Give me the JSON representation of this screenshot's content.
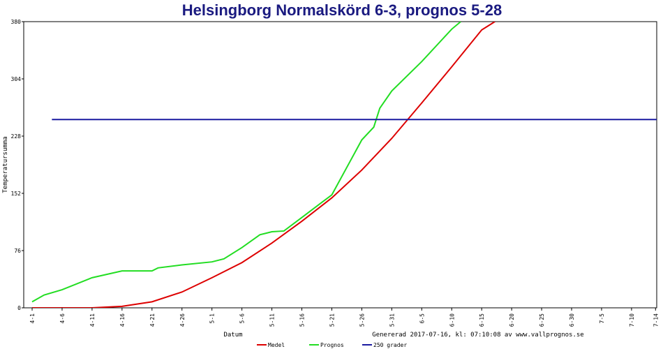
{
  "chart_data": {
    "type": "line",
    "title": "Helsingborg Normalskörd 6-3, prognos 5-28",
    "ylabel": "Temperatursumma",
    "xlabel": "Datum",
    "footer": "Genererad 2017-07-16, kl: 07:10:08 av www.vallprognos.se",
    "xlim": [
      -1.4,
      104.2
    ],
    "ylim": [
      0,
      380
    ],
    "yticks": [
      0,
      76,
      152,
      228,
      304,
      380
    ],
    "xticks": [
      {
        "value": 0,
        "label": "4-1"
      },
      {
        "value": 5,
        "label": "4-6"
      },
      {
        "value": 10,
        "label": "4-11"
      },
      {
        "value": 15,
        "label": "4-16"
      },
      {
        "value": 20,
        "label": "4-21"
      },
      {
        "value": 25,
        "label": "4-26"
      },
      {
        "value": 30,
        "label": "5-1"
      },
      {
        "value": 35,
        "label": "5-6"
      },
      {
        "value": 40,
        "label": "5-11"
      },
      {
        "value": 45,
        "label": "5-16"
      },
      {
        "value": 50,
        "label": "5-21"
      },
      {
        "value": 55,
        "label": "5-26"
      },
      {
        "value": 60,
        "label": "5-31"
      },
      {
        "value": 65,
        "label": "6-5"
      },
      {
        "value": 70,
        "label": "6-10"
      },
      {
        "value": 75,
        "label": "6-15"
      },
      {
        "value": 80,
        "label": "6-20"
      },
      {
        "value": 85,
        "label": "6-25"
      },
      {
        "value": 90,
        "label": "6-30"
      },
      {
        "value": 95,
        "label": "7-5"
      },
      {
        "value": 100,
        "label": "7-10"
      },
      {
        "value": 104,
        "label": "7-14"
      }
    ],
    "series": [
      {
        "name": "Medel",
        "color": "#dd0000",
        "x": [
          0,
          5,
          10,
          15,
          20,
          25,
          30,
          35,
          40,
          45,
          50,
          55,
          60,
          65,
          70,
          75,
          77.2
        ],
        "values": [
          0,
          0,
          0,
          2,
          8,
          21,
          40,
          60,
          86,
          115,
          146,
          183,
          225,
          272,
          320,
          369,
          380
        ]
      },
      {
        "name": "Prognos",
        "color": "#22dd22",
        "x": [
          0,
          2,
          5,
          10,
          15,
          20,
          21,
          25,
          30,
          32,
          35,
          38,
          40,
          42,
          45,
          48,
          50,
          55,
          57,
          58,
          60,
          65,
          70,
          71.5
        ],
        "values": [
          8,
          17,
          24,
          40,
          49,
          49,
          53,
          57,
          61,
          65,
          80,
          97,
          101,
          102,
          120,
          138,
          150,
          223,
          240,
          265,
          288,
          327,
          370,
          380
        ]
      },
      {
        "name": "250 grader",
        "color": "#1a1aa0",
        "x": [
          3.3,
          104.2
        ],
        "values": [
          250,
          250
        ]
      }
    ]
  }
}
